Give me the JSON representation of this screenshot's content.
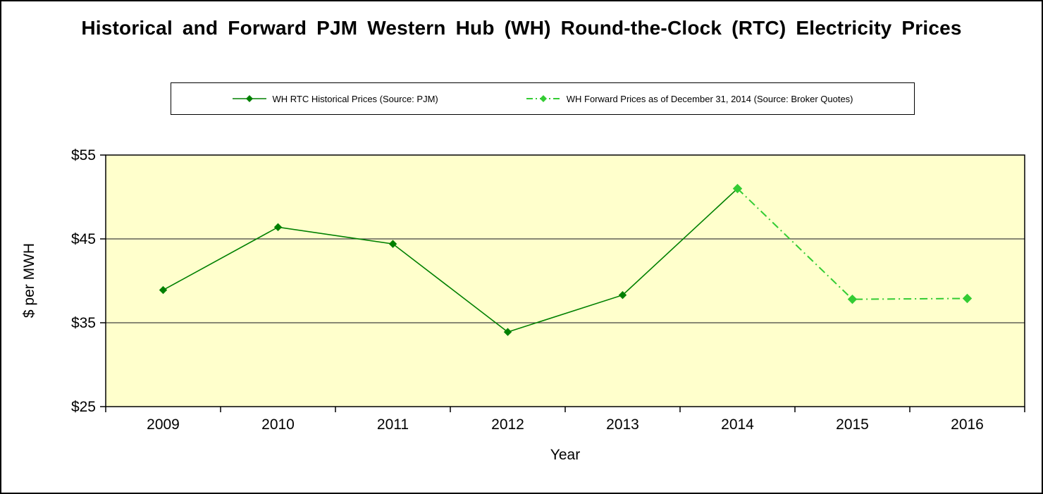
{
  "chart_data": {
    "type": "line",
    "title": "Historical and Forward PJM Western Hub (WH) Round-the-Clock (RTC) Electricity Prices",
    "xlabel": "Year",
    "ylabel": "$ per MWH",
    "categories": [
      2009,
      2010,
      2011,
      2012,
      2013,
      2014,
      2015,
      2016
    ],
    "x_tick_labels": [
      "2009",
      "2010",
      "2011",
      "2012",
      "2013",
      "2014",
      "2015",
      "2016"
    ],
    "y_ticks": [
      25,
      35,
      45,
      55
    ],
    "y_tick_labels": [
      "$25",
      "$35",
      "$45",
      "$55"
    ],
    "ylim": [
      25,
      55
    ],
    "grid": "horizontal",
    "legend_position": "top",
    "plot_bg_color": "#FFFFCC",
    "gridline_color": "#404040",
    "series": [
      {
        "name": "WH RTC Historical Prices (Source: PJM)",
        "color": "#008000",
        "style": "solid",
        "marker": "diamond",
        "marker_size": 5,
        "x": [
          2009,
          2010,
          2011,
          2012,
          2013,
          2014
        ],
        "values": [
          38.9,
          46.4,
          44.4,
          33.9,
          38.3,
          51.0
        ]
      },
      {
        "name": "WH Forward Prices as of December 31, 2014 (Source: Broker Quotes)",
        "color": "#33CC33",
        "style": "dash-dot",
        "marker": "diamond",
        "marker_size": 6,
        "x": [
          2014,
          2015,
          2016
        ],
        "values": [
          51.0,
          37.8,
          37.9
        ]
      }
    ]
  }
}
